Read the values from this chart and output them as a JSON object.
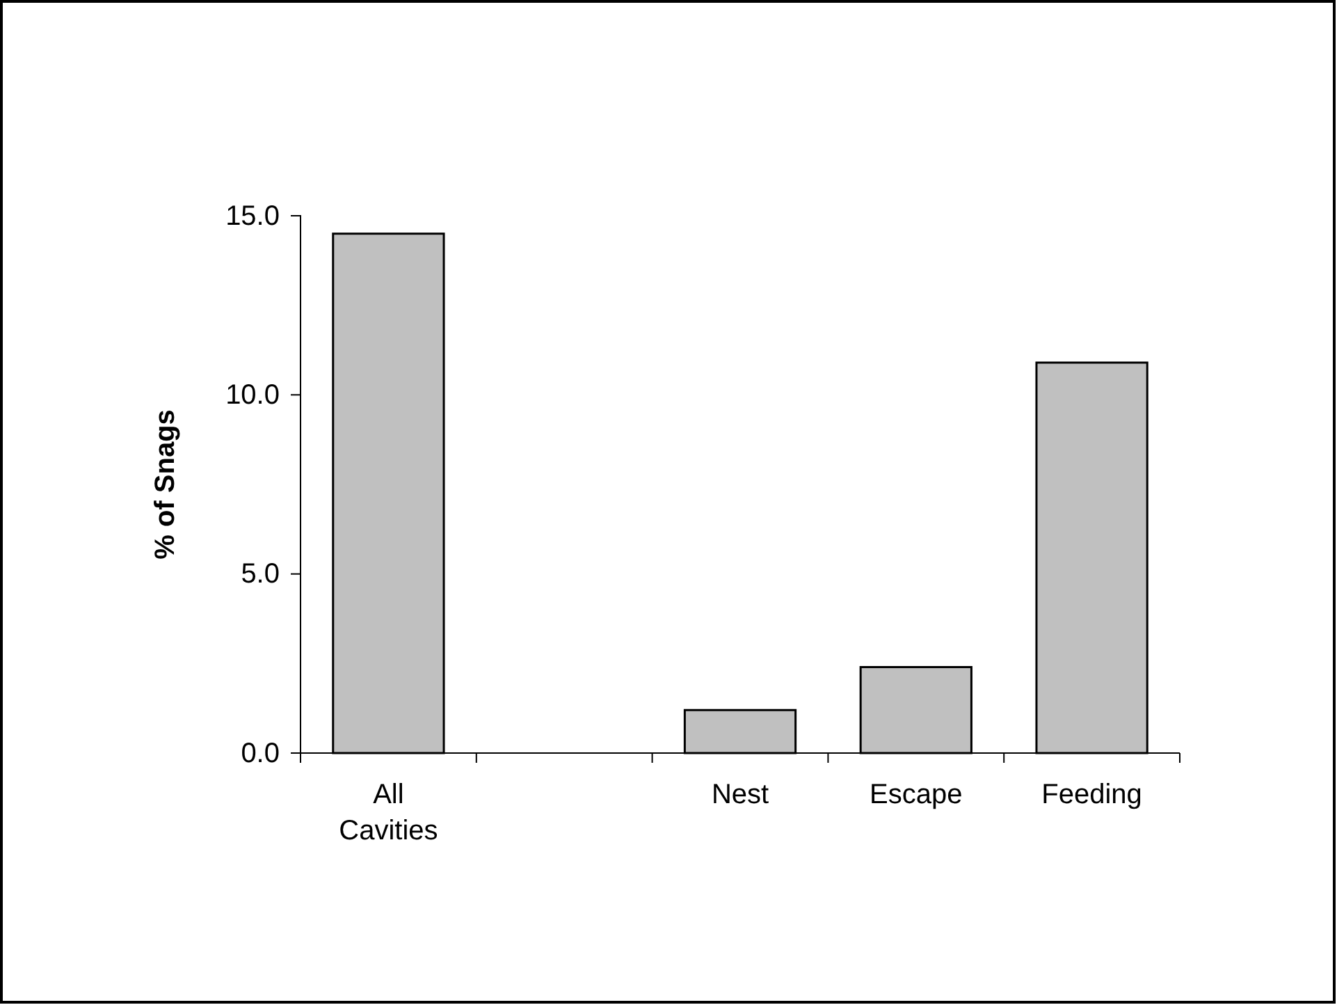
{
  "chart_data": {
    "type": "bar",
    "ylabel": "% of Snags",
    "categories": [
      "All Cavities",
      null,
      "Nest",
      "Escape",
      "Feeding"
    ],
    "values": [
      14.5,
      null,
      1.2,
      2.4,
      10.9
    ],
    "color": "#c0c0c0",
    "ylim": [
      0,
      15
    ],
    "yticks": [
      {
        "value": 0,
        "label": "0.0"
      },
      {
        "value": 5,
        "label": "5.0"
      },
      {
        "value": 10,
        "label": "10.0"
      },
      {
        "value": 15,
        "label": "15.0"
      }
    ],
    "grid": false
  }
}
